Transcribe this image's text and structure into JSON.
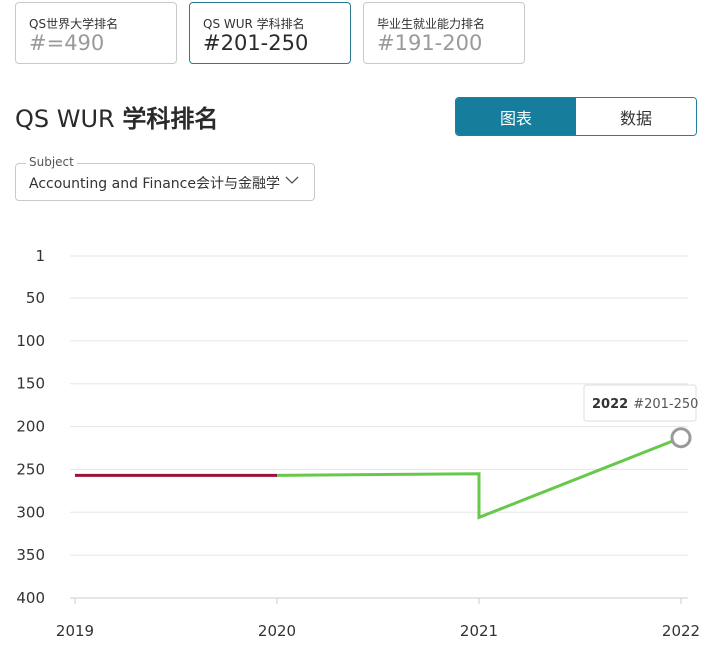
{
  "cards": [
    {
      "label": "QS世界大学排名",
      "value": "#=490"
    },
    {
      "label": "QS WUR 学科排名",
      "value": "#201-250"
    },
    {
      "label": "毕业生就业能力排名",
      "value": "#191-200"
    }
  ],
  "title": {
    "prefix": "QS WUR ",
    "bold": "学科排名"
  },
  "view_toggle": {
    "chart_label": "图表",
    "data_label": "数据"
  },
  "subject": {
    "legend": "Subject",
    "value": "Accounting and Finance会计与金融学"
  },
  "tooltip": {
    "year": "2022",
    "rank": "#201-250"
  },
  "colors": {
    "accent": "#167d9d",
    "series_red": "#a0103a",
    "series_green": "#66c94a"
  },
  "chart_data": {
    "type": "line",
    "x": [
      2019,
      2020,
      2021,
      2021,
      2022
    ],
    "y": [
      257,
      257,
      255,
      306,
      213
    ],
    "segments": [
      {
        "from": 0,
        "to": 1,
        "color": "#a0103a"
      },
      {
        "from": 1,
        "to": 4,
        "color": "#66c94a"
      }
    ],
    "y_ticks": [
      1,
      50,
      100,
      150,
      200,
      250,
      300,
      350,
      400
    ],
    "x_ticks": [
      "2019",
      "2020",
      "2021",
      "2022"
    ],
    "ylim": [
      1,
      400
    ],
    "y_inverted": true,
    "grid": true
  }
}
